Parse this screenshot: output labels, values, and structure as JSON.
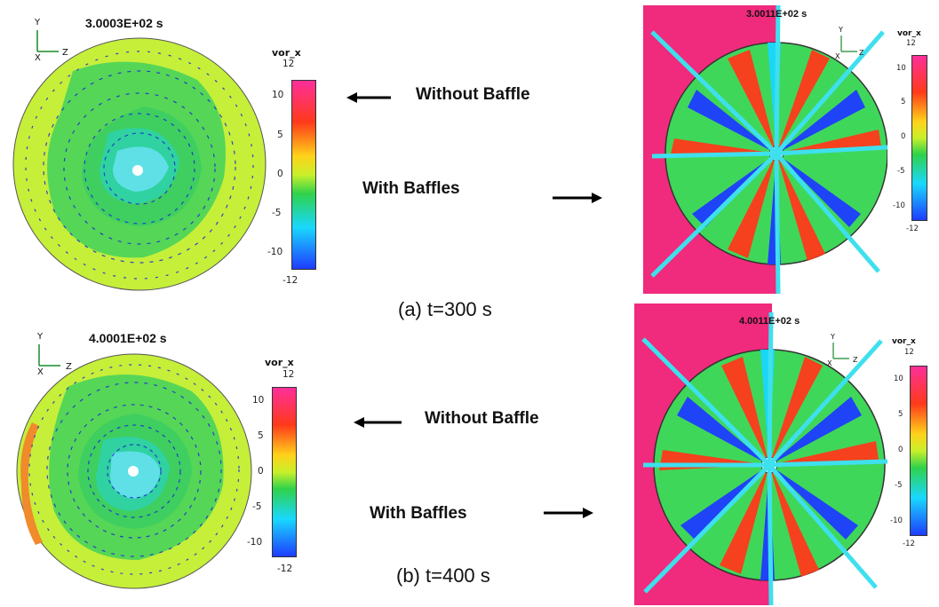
{
  "figure": {
    "panel_a": {
      "caption": "(a)  t=300 s",
      "without_title": "3.0003E+02 s",
      "with_title": "3.0011E+02 s",
      "without_label": "Without  Baffle",
      "with_label": "With Baffles",
      "cb_left": {
        "title": "vor_x",
        "max": "12",
        "min": "-12",
        "ticks": [
          "10",
          "5",
          "0",
          "-5",
          "-10"
        ]
      },
      "cb_right": {
        "title": "vor_x",
        "max": "12",
        "min": "-12",
        "ticks": [
          "10",
          "5",
          "0",
          "-5",
          "-10"
        ]
      }
    },
    "panel_b": {
      "caption": "(b)  t=400 s",
      "without_title": "4.0001E+02 s",
      "with_title": "4.0011E+02 s",
      "without_label": "Without  Baffle",
      "with_label": "With Baffles",
      "cb_left": {
        "title": "vor_x",
        "max": "12",
        "min": "-12",
        "ticks": [
          "10",
          "5",
          "0",
          "-5",
          "-10"
        ]
      },
      "cb_right": {
        "title": "vor_x",
        "max": "12",
        "min": "-12",
        "ticks": [
          "10",
          "5",
          "0",
          "-5",
          "-10"
        ]
      }
    },
    "axes_triad": {
      "y": "Y",
      "x": "X",
      "z": "Z"
    },
    "colormap": [
      "#1e3cff",
      "#19d8ff",
      "#2fd24a",
      "#c8f02a",
      "#ffd21a",
      "#ff3a1a",
      "#ff2f9a"
    ]
  }
}
